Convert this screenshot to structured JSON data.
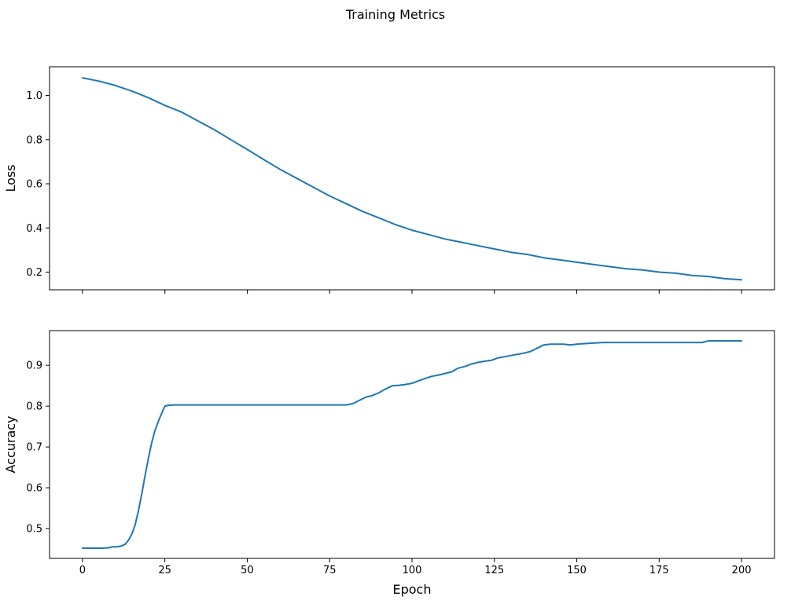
{
  "figure": {
    "title": "Training Metrics",
    "background": "#ffffff"
  },
  "chart_data": [
    {
      "type": "line",
      "name": "loss-vs-epoch",
      "title": "",
      "xlabel": "",
      "ylabel": "Loss",
      "grid": false,
      "legend": false,
      "line_color": "#1f77b4",
      "xlim": [
        -10,
        210
      ],
      "ylim": [
        0.12,
        1.13
      ],
      "xticks": [
        0,
        25,
        50,
        75,
        100,
        125,
        150,
        175,
        200
      ],
      "xticklabels": [],
      "show_xticklabels": false,
      "yticks": [
        0.2,
        0.4,
        0.6,
        0.8,
        1.0
      ],
      "yticklabels": [
        "0.2",
        "0.4",
        "0.6",
        "0.8",
        "1.0"
      ],
      "series": [
        {
          "name": "loss",
          "x": [
            0,
            5,
            10,
            15,
            20,
            25,
            30,
            35,
            40,
            45,
            50,
            55,
            60,
            65,
            70,
            75,
            80,
            85,
            90,
            95,
            100,
            105,
            110,
            115,
            120,
            125,
            130,
            135,
            140,
            145,
            150,
            155,
            160,
            165,
            170,
            175,
            180,
            185,
            190,
            195,
            200
          ],
          "y": [
            1.08,
            1.065,
            1.045,
            1.02,
            0.99,
            0.955,
            0.925,
            0.885,
            0.845,
            0.8,
            0.755,
            0.71,
            0.665,
            0.625,
            0.585,
            0.545,
            0.51,
            0.475,
            0.445,
            0.415,
            0.39,
            0.37,
            0.35,
            0.335,
            0.32,
            0.305,
            0.29,
            0.28,
            0.265,
            0.255,
            0.245,
            0.235,
            0.225,
            0.215,
            0.21,
            0.2,
            0.195,
            0.185,
            0.18,
            0.17,
            0.165
          ]
        }
      ]
    },
    {
      "type": "line",
      "name": "accuracy-vs-epoch",
      "title": "",
      "xlabel": "Epoch",
      "ylabel": "Accuracy",
      "grid": false,
      "legend": false,
      "line_color": "#1f77b4",
      "xlim": [
        -10,
        210
      ],
      "ylim": [
        0.427,
        0.985
      ],
      "xticks": [
        0,
        25,
        50,
        75,
        100,
        125,
        150,
        175,
        200
      ],
      "xticklabels": [
        "0",
        "25",
        "50",
        "75",
        "100",
        "125",
        "150",
        "175",
        "200"
      ],
      "show_xticklabels": true,
      "yticks": [
        0.5,
        0.6,
        0.7,
        0.8,
        0.9
      ],
      "yticklabels": [
        "0.5",
        "0.6",
        "0.7",
        "0.8",
        "0.9"
      ],
      "series": [
        {
          "name": "accuracy",
          "x": [
            0,
            2,
            4,
            6,
            8,
            9,
            10,
            11,
            12,
            13,
            14,
            15,
            16,
            17,
            18,
            19,
            20,
            21,
            22,
            23,
            24,
            25,
            26,
            28,
            30,
            40,
            50,
            60,
            70,
            80,
            82,
            84,
            86,
            88,
            90,
            92,
            94,
            96,
            98,
            100,
            102,
            104,
            106,
            108,
            110,
            112,
            114,
            116,
            118,
            120,
            122,
            124,
            126,
            128,
            130,
            132,
            134,
            136,
            138,
            140,
            142,
            144,
            146,
            148,
            150,
            152,
            154,
            156,
            158,
            160,
            165,
            170,
            175,
            180,
            185,
            188,
            190,
            195,
            200
          ],
          "y": [
            0.452,
            0.452,
            0.452,
            0.452,
            0.453,
            0.455,
            0.455,
            0.456,
            0.458,
            0.462,
            0.472,
            0.487,
            0.51,
            0.545,
            0.585,
            0.63,
            0.672,
            0.71,
            0.74,
            0.762,
            0.782,
            0.8,
            0.802,
            0.803,
            0.803,
            0.803,
            0.803,
            0.803,
            0.803,
            0.803,
            0.806,
            0.814,
            0.822,
            0.826,
            0.833,
            0.842,
            0.85,
            0.851,
            0.853,
            0.856,
            0.862,
            0.868,
            0.873,
            0.876,
            0.88,
            0.884,
            0.893,
            0.897,
            0.903,
            0.907,
            0.91,
            0.912,
            0.918,
            0.921,
            0.924,
            0.927,
            0.93,
            0.934,
            0.942,
            0.95,
            0.952,
            0.952,
            0.952,
            0.95,
            0.952,
            0.953,
            0.954,
            0.955,
            0.956,
            0.956,
            0.956,
            0.956,
            0.956,
            0.956,
            0.956,
            0.956,
            0.96,
            0.96,
            0.96
          ]
        }
      ]
    }
  ]
}
